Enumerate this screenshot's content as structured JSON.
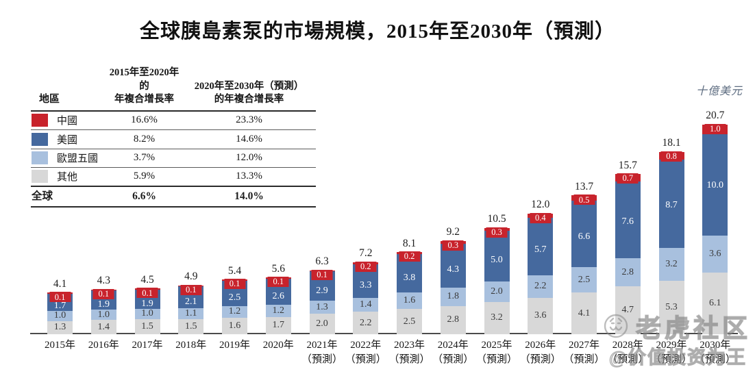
{
  "title": "全球胰島素泵的市場規模，2015年至2030年（預測）",
  "unit_label": "十億美元",
  "table": {
    "header": {
      "region": "地區",
      "col1_line1": "2015年至2020年的",
      "col1_line2": "年複合增長率",
      "col2_line1": "2020年至2030年（預測）",
      "col2_line2": "的年複合增長率"
    },
    "rows": [
      {
        "region": "中國",
        "cagr_2015_2020": "16.6%",
        "cagr_2020_2030": "23.3%",
        "color": "#c8232c"
      },
      {
        "region": "美國",
        "cagr_2015_2020": "8.2%",
        "cagr_2020_2030": "14.6%",
        "color": "#45699e"
      },
      {
        "region": "歐盟五國",
        "cagr_2015_2020": "3.7%",
        "cagr_2020_2030": "12.0%",
        "color": "#a8c0de"
      },
      {
        "region": "其他",
        "cagr_2015_2020": "5.9%",
        "cagr_2020_2030": "13.3%",
        "color": "#d8d8d8"
      }
    ],
    "footer": {
      "region": "全球",
      "cagr_2015_2020": "6.6%",
      "cagr_2020_2030": "14.0%"
    }
  },
  "chart_data": {
    "type": "bar",
    "subtype": "stacked",
    "title": "全球胰島素泵的市場規模，2015年至2030年（預測）",
    "ylabel": "十億美元",
    "xlabel": "",
    "grid": false,
    "legend_position": "left-table",
    "categories": [
      "2015年",
      "2016年",
      "2017年",
      "2018年",
      "2019年",
      "2020年",
      "2021年",
      "2022年",
      "2023年",
      "2024年",
      "2025年",
      "2026年",
      "2027年",
      "2028年",
      "2029年",
      "2030年"
    ],
    "forecast_start_index": 6,
    "forecast_label": "（預測）",
    "totals": [
      "4.1",
      "4.3",
      "4.5",
      "4.9",
      "5.4",
      "5.6",
      "6.3",
      "7.2",
      "8.1",
      "9.2",
      "10.5",
      "12.0",
      "13.7",
      "15.7",
      "18.1",
      "20.7"
    ],
    "series": [
      {
        "name": "其他",
        "color": "#d8d8d8",
        "text_color": "#3a3a3a",
        "values": [
          "1.3",
          "1.4",
          "1.5",
          "1.5",
          "1.6",
          "1.7",
          "2.0",
          "2.2",
          "2.5",
          "2.8",
          "3.2",
          "3.6",
          "4.1",
          "4.7",
          "5.3",
          "6.1"
        ]
      },
      {
        "name": "歐盟五國",
        "color": "#a8c0de",
        "text_color": "#3a3a3a",
        "values": [
          "1.0",
          "1.0",
          "1.0",
          "1.1",
          "1.2",
          "1.2",
          "1.3",
          "1.4",
          "1.6",
          "1.8",
          "2.0",
          "2.2",
          "2.5",
          "2.8",
          "3.2",
          "3.6"
        ]
      },
      {
        "name": "美國",
        "color": "#45699e",
        "text_color": "#ffffff",
        "values": [
          "1.7",
          "1.9",
          "1.9",
          "2.1",
          "2.5",
          "2.6",
          "2.9",
          "3.3",
          "3.8",
          "4.3",
          "5.0",
          "5.7",
          "6.6",
          "7.6",
          "8.7",
          "10.0"
        ]
      },
      {
        "name": "中國",
        "color": "#c8232c",
        "text_color": "#ffffff",
        "badge": true,
        "values": [
          "0.1",
          "0.1",
          "0.1",
          "0.1",
          "0.1",
          "0.1",
          "0.1",
          "0.2",
          "0.2",
          "0.3",
          "0.3",
          "0.4",
          "0.5",
          "0.7",
          "0.8",
          "1.0"
        ]
      }
    ]
  },
  "watermark": {
    "community": "老虎社区",
    "handle": "@价值投资为王"
  }
}
